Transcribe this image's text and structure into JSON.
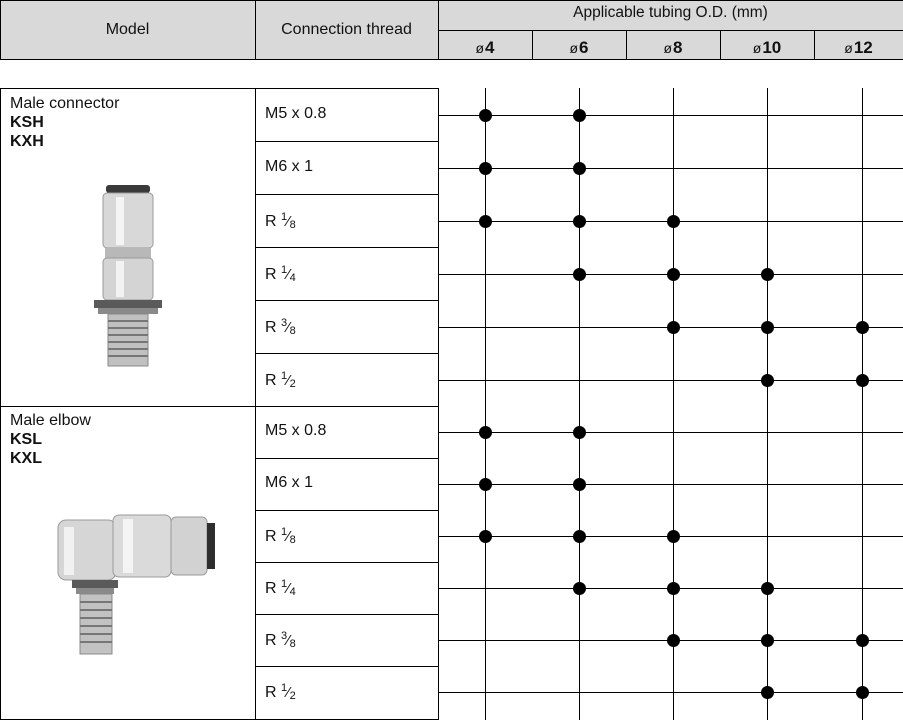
{
  "header": {
    "model": "Model",
    "connection_thread": "Connection thread",
    "tubing": "Applicable tubing O.D. (mm)",
    "diameter_symbol": "ø",
    "diameters": [
      "4",
      "6",
      "8",
      "10",
      "12"
    ]
  },
  "groups": [
    {
      "name": "Male connector",
      "codes": [
        "KSH",
        "KXH"
      ],
      "image_icon": "male-connector-fitting",
      "rows": [
        {
          "thread": "M5 x 0.8",
          "fits": [
            true,
            true,
            false,
            false,
            false
          ]
        },
        {
          "thread": "M6 x 1",
          "fits": [
            true,
            true,
            false,
            false,
            false
          ]
        },
        {
          "thread": "R",
          "num": "1",
          "den": "8",
          "fits": [
            true,
            true,
            true,
            false,
            false
          ]
        },
        {
          "thread": "R",
          "num": "1",
          "den": "4",
          "fits": [
            false,
            true,
            true,
            true,
            false
          ]
        },
        {
          "thread": "R",
          "num": "3",
          "den": "8",
          "fits": [
            false,
            false,
            true,
            true,
            true
          ]
        },
        {
          "thread": "R",
          "num": "1",
          "den": "2",
          "fits": [
            false,
            false,
            false,
            true,
            true
          ]
        }
      ]
    },
    {
      "name": "Male elbow",
      "codes": [
        "KSL",
        "KXL"
      ],
      "image_icon": "male-elbow-fitting",
      "rows": [
        {
          "thread": "M5 x 0.8",
          "fits": [
            true,
            true,
            false,
            false,
            false
          ]
        },
        {
          "thread": "M6 x 1",
          "fits": [
            true,
            true,
            false,
            false,
            false
          ]
        },
        {
          "thread": "R",
          "num": "1",
          "den": "8",
          "fits": [
            true,
            true,
            true,
            false,
            false
          ]
        },
        {
          "thread": "R",
          "num": "1",
          "den": "4",
          "fits": [
            false,
            true,
            true,
            true,
            false
          ]
        },
        {
          "thread": "R",
          "num": "3",
          "den": "8",
          "fits": [
            false,
            false,
            true,
            true,
            true
          ]
        },
        {
          "thread": "R",
          "num": "1",
          "den": "2",
          "fits": [
            false,
            false,
            false,
            true,
            true
          ]
        }
      ]
    }
  ]
}
